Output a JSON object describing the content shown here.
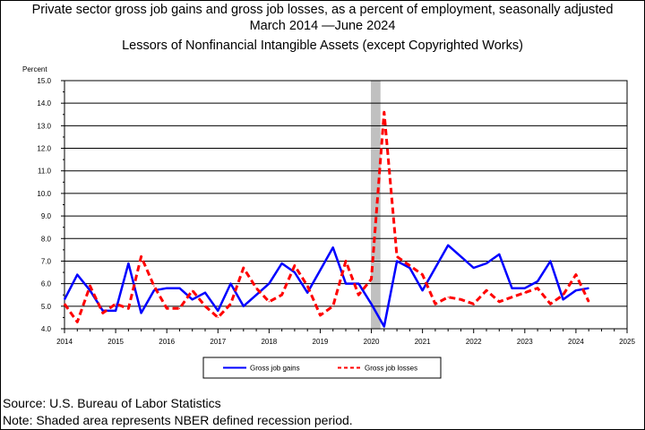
{
  "header": {
    "title": "Private sector gross job gains and gross job losses, as a percent of employment, seasonally adjusted",
    "subtitle": "March 2014 —June 2024",
    "series_title": "Lessors of Nonfinancial Intangible Assets (except Copyrighted Works)"
  },
  "footer": {
    "source": "Source: U.S. Bureau of Labor Statistics",
    "note": "Note: Shaded area represents NBER defined recession period."
  },
  "chart_data": {
    "type": "line",
    "ylabel": "Percent",
    "xlabel": "",
    "ylim": [
      4.0,
      15.0
    ],
    "xlim": [
      2014,
      2025
    ],
    "y_ticks": [
      "4.0",
      "5.0",
      "6.0",
      "7.0",
      "8.0",
      "9.0",
      "10.0",
      "11.0",
      "12.0",
      "13.0",
      "14.0",
      "15.0"
    ],
    "x_ticks": [
      "2014",
      "2015",
      "2016",
      "2017",
      "2018",
      "2019",
      "2020",
      "2021",
      "2022",
      "2023",
      "2024",
      "2025"
    ],
    "recession": [
      2020.0,
      2020.17
    ],
    "grid": "horizontal major lines",
    "legend_position": "bottom-center",
    "series": [
      {
        "name": "Gross job gains",
        "color": "#0000ff",
        "style": "solid",
        "x": [
          2014.0,
          2014.25,
          2014.5,
          2014.75,
          2015.0,
          2015.25,
          2015.5,
          2015.75,
          2016.0,
          2016.25,
          2016.5,
          2016.75,
          2017.0,
          2017.25,
          2017.5,
          2017.75,
          2018.0,
          2018.25,
          2018.5,
          2018.75,
          2019.0,
          2019.25,
          2019.5,
          2019.75,
          2020.0,
          2020.25,
          2020.5,
          2020.75,
          2021.0,
          2021.25,
          2021.5,
          2021.75,
          2022.0,
          2022.25,
          2022.5,
          2022.75,
          2023.0,
          2023.25,
          2023.5,
          2023.75,
          2024.0,
          2024.25
        ],
        "y": [
          5.3,
          6.4,
          5.7,
          4.8,
          4.8,
          6.9,
          4.7,
          5.7,
          5.8,
          5.8,
          5.3,
          5.6,
          4.8,
          6.0,
          5.0,
          5.5,
          6.0,
          6.9,
          6.5,
          5.6,
          6.6,
          7.6,
          6.0,
          6.0,
          5.1,
          4.1,
          7.0,
          6.7,
          5.7,
          6.7,
          7.7,
          7.2,
          6.7,
          6.9,
          7.3,
          5.8,
          5.8,
          6.1,
          7.0,
          5.3,
          5.7,
          5.8
        ]
      },
      {
        "name": "Gross job losses",
        "color": "#ff0000",
        "style": "dashed",
        "x": [
          2014.0,
          2014.25,
          2014.5,
          2014.75,
          2015.0,
          2015.25,
          2015.5,
          2015.75,
          2016.0,
          2016.25,
          2016.5,
          2016.75,
          2017.0,
          2017.25,
          2017.5,
          2017.75,
          2018.0,
          2018.25,
          2018.5,
          2018.75,
          2019.0,
          2019.25,
          2019.5,
          2019.75,
          2020.0,
          2020.25,
          2020.5,
          2020.75,
          2021.0,
          2021.25,
          2021.5,
          2021.75,
          2022.0,
          2022.25,
          2022.5,
          2022.75,
          2023.0,
          2023.25,
          2023.5,
          2023.75,
          2024.0,
          2024.25
        ],
        "y": [
          5.1,
          4.3,
          5.9,
          4.7,
          5.1,
          4.9,
          7.2,
          5.9,
          4.9,
          4.9,
          5.7,
          5.0,
          4.5,
          5.1,
          6.7,
          5.8,
          5.2,
          5.5,
          6.8,
          5.9,
          4.6,
          5.0,
          7.0,
          5.5,
          6.2,
          13.6,
          7.2,
          6.8,
          6.4,
          5.1,
          5.4,
          5.3,
          5.1,
          5.7,
          5.2,
          5.4,
          5.6,
          5.8,
          5.1,
          5.5,
          6.4,
          5.2
        ]
      }
    ]
  }
}
